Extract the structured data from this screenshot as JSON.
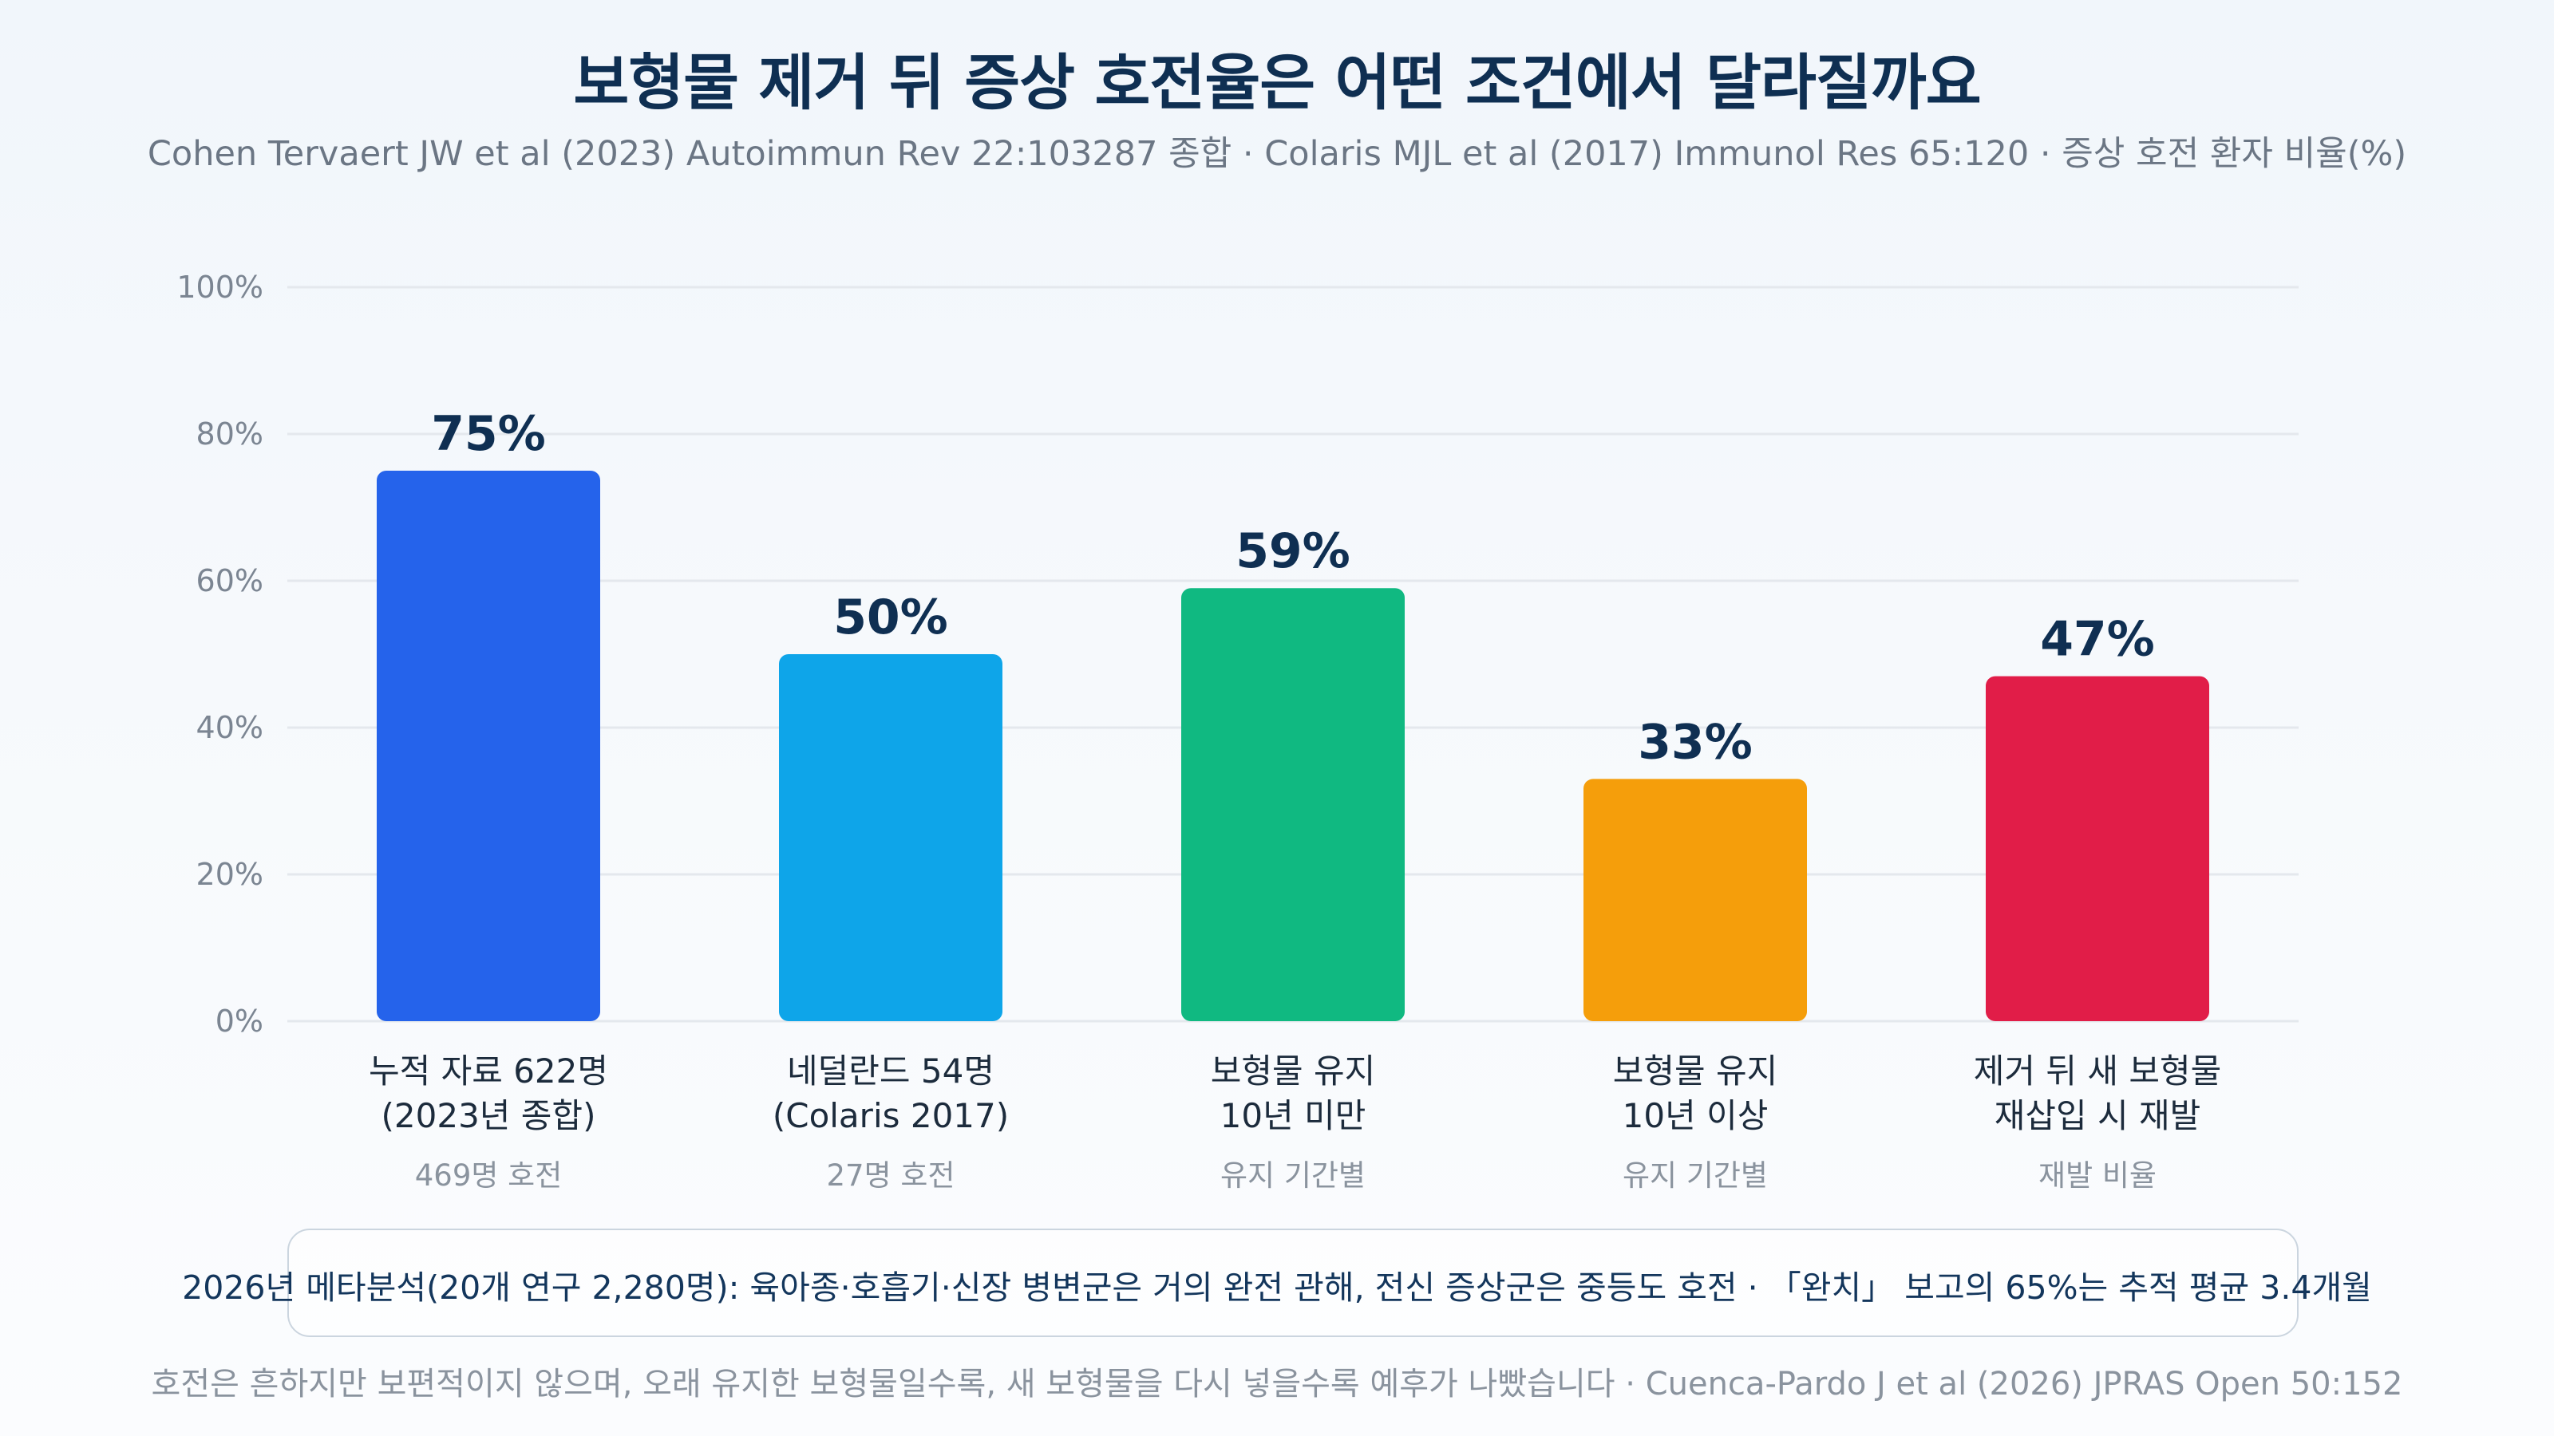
{
  "header": {
    "title": "보형물 제거 뒤 증상 호전율은 어떤 조건에서 달라질까요",
    "subtitle": "Cohen Tervaert JW et al (2023) Autoimmun Rev 22:103287 종합 · Colaris MJL et al (2017) Immunol Res 65:120 · 증상 호전 환자 비율(%)"
  },
  "chart_data": {
    "type": "bar",
    "categories": [
      [
        "누적 자료 622명",
        "(2023년 종합)"
      ],
      [
        "네덜란드 54명",
        "(Colaris 2017)"
      ],
      [
        "보형물 유지",
        "10년 미만"
      ],
      [
        "보형물 유지",
        "10년 이상"
      ],
      [
        "제거 뒤 새 보형물",
        "재삽입 시 재발"
      ]
    ],
    "category_notes": [
      "469명 호전",
      "27명 호전",
      "유지 기간별",
      "유지 기간별",
      "재발 비율"
    ],
    "values": [
      75,
      50,
      59,
      33,
      47
    ],
    "value_labels": [
      "75%",
      "50%",
      "59%",
      "33%",
      "47%"
    ],
    "colors": [
      "#2563eb",
      "#0ea5e9",
      "#10b981",
      "#f59e0b",
      "#e11d48"
    ],
    "ylim": [
      0,
      100
    ],
    "y_ticks": [
      0,
      20,
      40,
      60,
      80,
      100
    ],
    "y_tick_labels": [
      "0%",
      "20%",
      "40%",
      "60%",
      "80%",
      "100%"
    ],
    "grid": true,
    "gridline_color": "#e4e8ed",
    "legend": "none"
  },
  "note": {
    "text": "2026년 메타분석(20개 연구 2,280명): 육아종·호흡기·신장 병변군은 거의 완전 관해, 전신 증상군은 중등도 호전 · 「완치」 보고의 65%는 추적 평균 3.4개월"
  },
  "footer": {
    "text": "호전은 흔하지만 보편적이지 않으며, 오래 유지한 보형물일수록, 새 보형물을 다시 넣을수록 예후가 나빴습니다 · Cuenca-Pardo J et al (2026) JPRAS Open 50:152"
  }
}
